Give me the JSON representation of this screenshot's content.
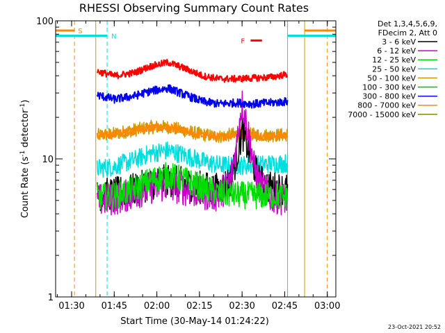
{
  "chart_data": {
    "type": "line",
    "title": "RHESSI Observing Summary Count Rates",
    "xlabel": "Start Time (30-May-14 01:24:22)",
    "ylabel_pre": "Count Rate (s",
    "ylabel_sup": "-1",
    "ylabel_post": " detector",
    "ylabel_sup2": "-1",
    "ylabel_end": ")",
    "y_scale": "log",
    "ylim": [
      1,
      100
    ],
    "xlim": [
      "01:24:22",
      "03:03:00"
    ],
    "x_ticks": [
      "01:30",
      "01:45",
      "02:00",
      "02:15",
      "02:30",
      "02:45",
      "03:00"
    ],
    "y_ticks": [
      "1",
      "10",
      "100"
    ],
    "legend_header": [
      "Det 1,3,4,5,6,9,",
      "FDecim 2, Att 0"
    ],
    "legend_placement": "right",
    "data_start": "01:39:00",
    "data_end": "02:46:00",
    "series": [
      {
        "name": "3 - 6 keV",
        "color": "#000000",
        "x": [
          "01:39",
          "01:45",
          "01:52",
          "01:58",
          "02:04",
          "02:10",
          "02:16",
          "02:22",
          "02:26",
          "02:28",
          "02:30",
          "02:32",
          "02:34",
          "02:36",
          "02:40",
          "02:46"
        ],
        "values": [
          5.5,
          5.6,
          6.0,
          6.6,
          7.0,
          6.6,
          6.2,
          6.0,
          7.0,
          10.0,
          15.5,
          12.0,
          9.0,
          7.0,
          6.2,
          6.0
        ]
      },
      {
        "name": "6 - 12 keV",
        "color": "#cc00cc",
        "x": [
          "01:39",
          "01:45",
          "01:52",
          "01:58",
          "02:04",
          "02:10",
          "02:16",
          "02:22",
          "02:26",
          "02:28",
          "02:30",
          "02:32",
          "02:34",
          "02:36",
          "02:40",
          "02:46"
        ],
        "values": [
          5.0,
          5.1,
          5.6,
          6.2,
          6.4,
          6.0,
          5.6,
          5.4,
          7.0,
          12.0,
          25.0,
          16.0,
          9.0,
          6.5,
          5.3,
          5.1
        ]
      },
      {
        "name": "12 - 25 keV",
        "color": "#00dd00",
        "x": [
          "01:39",
          "01:45",
          "01:52",
          "01:58",
          "02:04",
          "02:10",
          "02:16",
          "02:22",
          "02:28",
          "02:34",
          "02:40",
          "02:46"
        ],
        "values": [
          5.3,
          5.4,
          6.0,
          7.0,
          7.6,
          7.0,
          6.2,
          5.6,
          5.5,
          5.4,
          5.4,
          5.3
        ]
      },
      {
        "name": "25 - 50 keV",
        "color": "#00dddd",
        "x": [
          "01:39",
          "01:45",
          "01:52",
          "01:58",
          "02:04",
          "02:10",
          "02:16",
          "02:22",
          "02:28",
          "02:34",
          "02:40",
          "02:46"
        ],
        "values": [
          8.5,
          8.8,
          9.8,
          11.0,
          11.5,
          10.6,
          9.6,
          9.0,
          9.0,
          9.0,
          9.2,
          9.3
        ]
      },
      {
        "name": "50 - 100 keV",
        "color": "#cc9900",
        "x": [
          "01:39",
          "01:45",
          "01:52",
          "01:58",
          "02:04",
          "02:10",
          "02:16",
          "02:22",
          "02:28",
          "02:34",
          "02:40",
          "02:46"
        ],
        "values": [
          14.8,
          15.2,
          16.2,
          17.0,
          17.0,
          16.0,
          15.0,
          14.5,
          15.2,
          15.0,
          14.8,
          15.0
        ]
      },
      {
        "name": "100 - 300 keV",
        "color": "#00bb00",
        "x": [],
        "values": []
      },
      {
        "name": "300 - 800 keV",
        "color": "#0000ee",
        "x": [
          "01:39",
          "01:45",
          "01:52",
          "01:58",
          "02:04",
          "02:10",
          "02:16",
          "02:22",
          "02:28",
          "02:34",
          "02:40",
          "02:46"
        ],
        "values": [
          29.0,
          27.0,
          28.5,
          31.0,
          32.5,
          29.0,
          26.0,
          25.0,
          25.5,
          25.0,
          25.5,
          26.0
        ]
      },
      {
        "name": "800 - 7000 keV",
        "color": "#ff8800",
        "x": [
          "01:39",
          "01:45",
          "01:52",
          "01:58",
          "02:04",
          "02:10",
          "02:16",
          "02:22",
          "02:28",
          "02:34",
          "02:40",
          "02:46"
        ],
        "values": [
          14.6,
          15.0,
          16.0,
          16.8,
          16.8,
          15.8,
          14.8,
          14.4,
          15.0,
          14.8,
          14.6,
          14.8
        ]
      },
      {
        "name": "7000 - 15000 keV",
        "color": "#888800",
        "x": [],
        "values": []
      },
      {
        "name": "",
        "color": "#ff0000",
        "x": [
          "01:39",
          "01:45",
          "01:52",
          "01:58",
          "02:04",
          "02:10",
          "02:16",
          "02:22",
          "02:28",
          "02:34",
          "02:40",
          "02:46"
        ],
        "values": [
          43,
          40,
          42,
          47,
          50,
          45,
          40,
          38,
          38,
          38.5,
          39,
          41
        ]
      }
    ],
    "annotations": {
      "S": {
        "label": "S",
        "color": "#ff8800",
        "start": "01:24:22",
        "end": "01:31:00",
        "level": 85
      },
      "N": {
        "label": "N",
        "color": "#00dddd",
        "start": "01:24:22",
        "end": "01:42:30",
        "level": 78
      },
      "F": {
        "label": "F",
        "color": "#ff0000",
        "start": "02:33:00",
        "end": "02:37:00",
        "level": 72
      },
      "night_after": {
        "color": "#00dddd",
        "start": "02:46:00",
        "end": "03:03:00",
        "level": 78
      },
      "saa_after": {
        "color": "#ff8800",
        "start": "02:52:00",
        "end": "03:03:00",
        "level": 85
      },
      "vlines": [
        {
          "time": "01:31:00",
          "color": "#ff8800",
          "style": "dashed"
        },
        {
          "time": "01:38:30",
          "color": "#cc9900",
          "style": "solid"
        },
        {
          "time": "01:42:30",
          "color": "#00dddd",
          "style": "dashed"
        },
        {
          "time": "02:46:00",
          "color": "#00dddd",
          "style": "solid"
        },
        {
          "time": "02:52:00",
          "color": "#cc9900",
          "style": "solid"
        },
        {
          "time": "03:00:00",
          "color": "#ff8800",
          "style": "dashed"
        }
      ]
    },
    "timestamp": "23-Oct-2021 20:52"
  }
}
